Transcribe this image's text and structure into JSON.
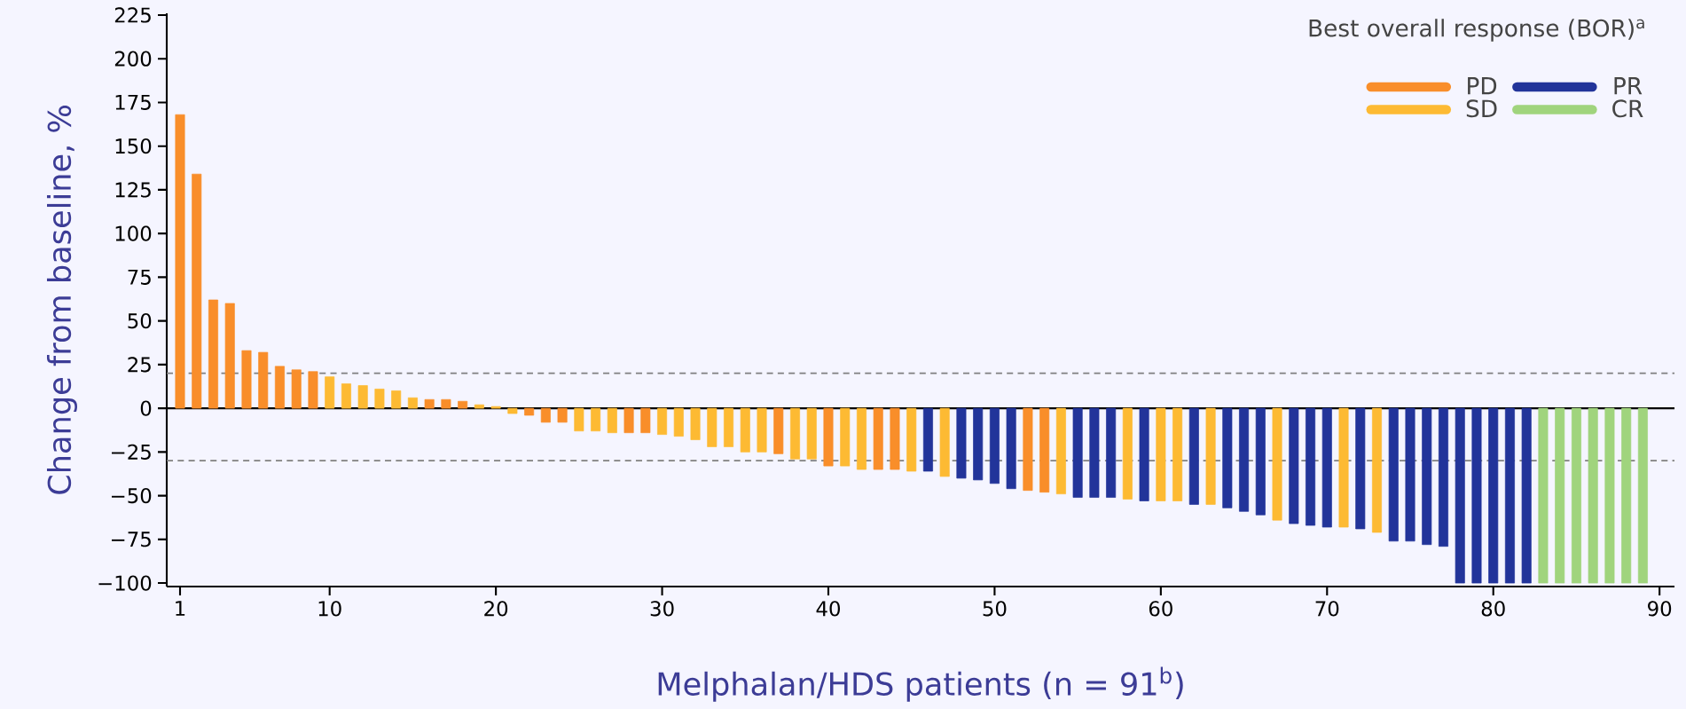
{
  "chart_data": {
    "type": "bar",
    "xlabel": "Melphalan/HDS patients (n = 91$^{b}$)",
    "ylabel": "Change from baseline, %",
    "legend_title": "Best overall response (BOR)$^{a}$",
    "legend": "top right",
    "series": [
      {
        "name": "PD",
        "color": "#f98e2a",
        "x": [
          1,
          2,
          3,
          4,
          5,
          6,
          7,
          8,
          9,
          16,
          17,
          18,
          22,
          23,
          24,
          28,
          29,
          37,
          40,
          43,
          44,
          52,
          53
        ],
        "values": [
          168,
          134,
          62,
          60,
          33,
          32,
          24,
          22,
          21,
          5,
          5,
          4,
          -4,
          -8,
          -8,
          -14,
          -14,
          -26,
          -33,
          -35,
          -35,
          -47,
          -48
        ]
      },
      {
        "name": "SD",
        "color": "#fdba33",
        "x": [
          10,
          11,
          12,
          13,
          14,
          15,
          19,
          20,
          21,
          25,
          26,
          27,
          30,
          31,
          32,
          33,
          34,
          35,
          36,
          38,
          39,
          41,
          42,
          45,
          47,
          54,
          58,
          60,
          61,
          63,
          67,
          71,
          73
        ],
        "values": [
          18,
          14,
          13,
          11,
          10,
          6,
          2,
          1,
          -3,
          -13,
          -13,
          -14,
          -15,
          -16,
          -18,
          -22,
          -22,
          -25,
          -25,
          -29,
          -29,
          -33,
          -35,
          -36,
          -39,
          -49,
          -52,
          -53,
          -53,
          -55,
          -64,
          -68,
          -71
        ]
      },
      {
        "name": "PR",
        "color": "#22349a",
        "x": [
          46,
          48,
          49,
          50,
          51,
          55,
          56,
          57,
          59,
          62,
          64,
          65,
          66,
          68,
          69,
          70,
          72,
          74,
          75,
          76,
          77,
          78,
          79,
          80,
          81,
          82
        ],
        "values": [
          -36,
          -40,
          -41,
          -43,
          -46,
          -51,
          -51,
          -51,
          -53,
          -55,
          -57,
          -59,
          -61,
          -66,
          -67,
          -68,
          -69,
          -76,
          -76,
          -78,
          -79,
          -100,
          -100,
          -100,
          -100,
          -100
        ]
      },
      {
        "name": "CR",
        "color": "#a0d47d",
        "x": [
          83,
          84,
          85,
          86,
          87,
          88,
          89
        ],
        "values": [
          -100,
          -100,
          -100,
          -100,
          -100,
          -100,
          -100
        ]
      }
    ],
    "xlim": [
      0.2,
      90.9
    ],
    "xticks": [
      1,
      10,
      20,
      30,
      40,
      50,
      60,
      70,
      80,
      90
    ],
    "ylim": [
      -102,
      226
    ],
    "yticks": [
      {
        "value": -100,
        "label": "−100"
      },
      {
        "value": -75,
        "label": "−75"
      },
      {
        "value": -50,
        "label": "−50"
      },
      {
        "value": -25,
        "label": "−25"
      },
      0,
      25,
      50,
      75,
      100,
      125,
      150,
      175,
      200,
      225
    ],
    "ref_lines": [
      {
        "axis": "y",
        "value": 20,
        "color": "#808080",
        "line_style": "dashed"
      },
      {
        "axis": "y",
        "value": -30,
        "color": "#808080",
        "line_style": "dashed"
      },
      {
        "axis": "y",
        "value": 0,
        "color": "#000000",
        "line_style": "solid"
      }
    ]
  }
}
